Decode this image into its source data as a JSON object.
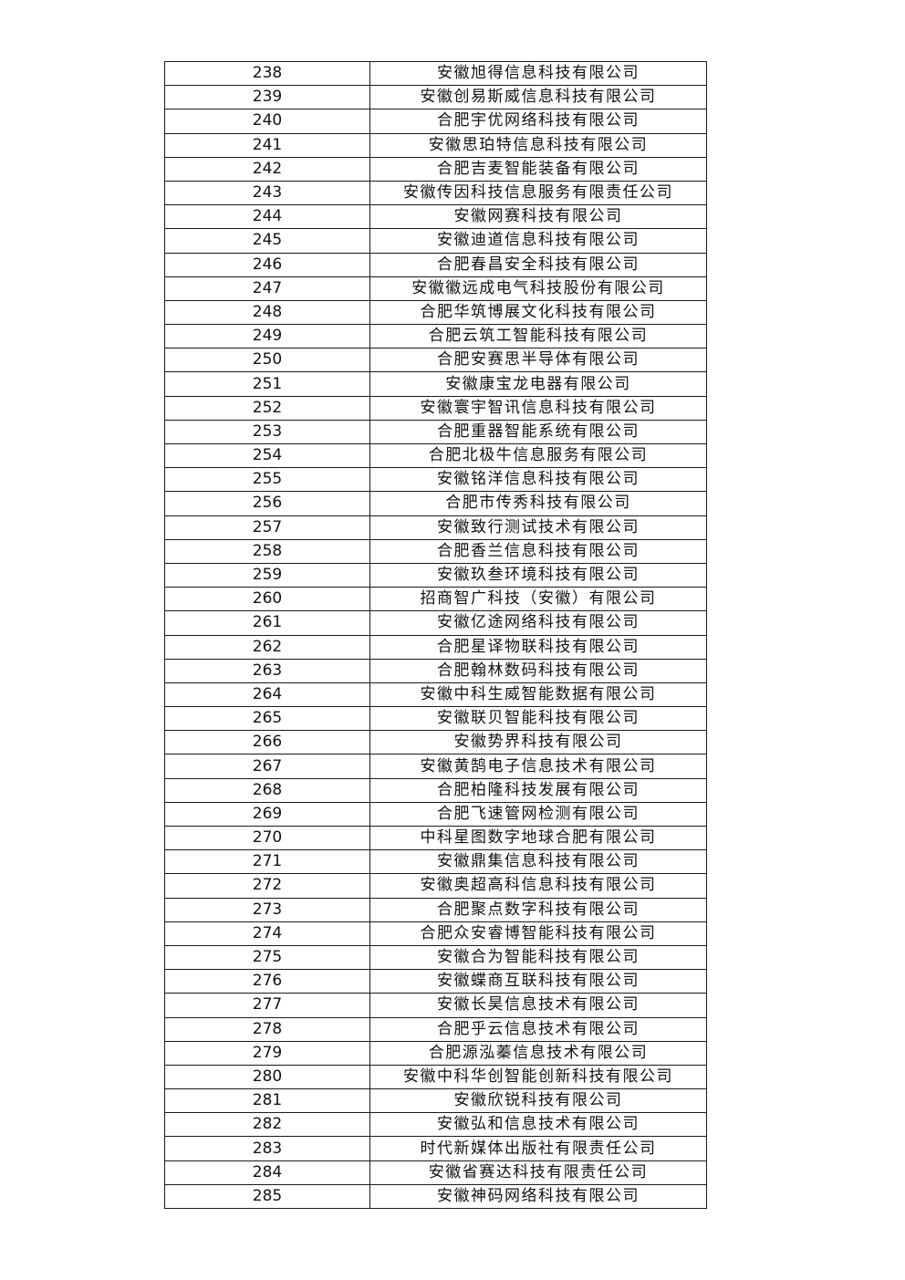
{
  "table": {
    "rows": [
      {
        "no": "238",
        "name": "安徽旭得信息科技有限公司"
      },
      {
        "no": "239",
        "name": "安徽创易斯威信息科技有限公司"
      },
      {
        "no": "240",
        "name": "合肥宇优网络科技有限公司"
      },
      {
        "no": "241",
        "name": "安徽思珀特信息科技有限公司"
      },
      {
        "no": "242",
        "name": "合肥吉麦智能装备有限公司"
      },
      {
        "no": "243",
        "name": "安徽传因科技信息服务有限责任公司"
      },
      {
        "no": "244",
        "name": "安徽网赛科技有限公司"
      },
      {
        "no": "245",
        "name": "安徽迪道信息科技有限公司"
      },
      {
        "no": "246",
        "name": "合肥春昌安全科技有限公司"
      },
      {
        "no": "247",
        "name": "安徽徽远成电气科技股份有限公司"
      },
      {
        "no": "248",
        "name": "合肥华筑博展文化科技有限公司"
      },
      {
        "no": "249",
        "name": "合肥云筑工智能科技有限公司"
      },
      {
        "no": "250",
        "name": "合肥安赛思半导体有限公司"
      },
      {
        "no": "251",
        "name": "安徽康宝龙电器有限公司"
      },
      {
        "no": "252",
        "name": "安徽寰宇智讯信息科技有限公司"
      },
      {
        "no": "253",
        "name": "合肥重器智能系统有限公司"
      },
      {
        "no": "254",
        "name": "合肥北极牛信息服务有限公司"
      },
      {
        "no": "255",
        "name": "安徽铭洋信息科技有限公司"
      },
      {
        "no": "256",
        "name": "合肥市传秀科技有限公司"
      },
      {
        "no": "257",
        "name": "安徽致行测试技术有限公司"
      },
      {
        "no": "258",
        "name": "合肥香兰信息科技有限公司"
      },
      {
        "no": "259",
        "name": "安徽玖叁环境科技有限公司"
      },
      {
        "no": "260",
        "name": "招商智广科技（安徽）有限公司"
      },
      {
        "no": "261",
        "name": "安徽亿途网络科技有限公司"
      },
      {
        "no": "262",
        "name": "合肥星译物联科技有限公司"
      },
      {
        "no": "263",
        "name": "合肥翰林数码科技有限公司"
      },
      {
        "no": "264",
        "name": "安徽中科生威智能数据有限公司"
      },
      {
        "no": "265",
        "name": "安徽联贝智能科技有限公司"
      },
      {
        "no": "266",
        "name": "安徽势界科技有限公司"
      },
      {
        "no": "267",
        "name": "安徽黄鹄电子信息技术有限公司"
      },
      {
        "no": "268",
        "name": "合肥柏隆科技发展有限公司"
      },
      {
        "no": "269",
        "name": "合肥飞速管网检测有限公司"
      },
      {
        "no": "270",
        "name": "中科星图数字地球合肥有限公司"
      },
      {
        "no": "271",
        "name": "安徽鼎集信息科技有限公司"
      },
      {
        "no": "272",
        "name": "安徽奥超高科信息科技有限公司"
      },
      {
        "no": "273",
        "name": "合肥聚点数字科技有限公司"
      },
      {
        "no": "274",
        "name": "合肥众安睿博智能科技有限公司"
      },
      {
        "no": "275",
        "name": "安徽合为智能科技有限公司"
      },
      {
        "no": "276",
        "name": "安徽蝶商互联科技有限公司"
      },
      {
        "no": "277",
        "name": "安徽长昊信息技术有限公司"
      },
      {
        "no": "278",
        "name": "合肥乎云信息技术有限公司"
      },
      {
        "no": "279",
        "name": "合肥源泓蓁信息技术有限公司"
      },
      {
        "no": "280",
        "name": "安徽中科华创智能创新科技有限公司"
      },
      {
        "no": "281",
        "name": "安徽欣锐科技有限公司"
      },
      {
        "no": "282",
        "name": "安徽弘和信息技术有限公司"
      },
      {
        "no": "283",
        "name": "时代新媒体出版社有限责任公司"
      },
      {
        "no": "284",
        "name": "安徽省赛达科技有限责任公司"
      },
      {
        "no": "285",
        "name": "安徽神码网络科技有限公司"
      }
    ]
  }
}
